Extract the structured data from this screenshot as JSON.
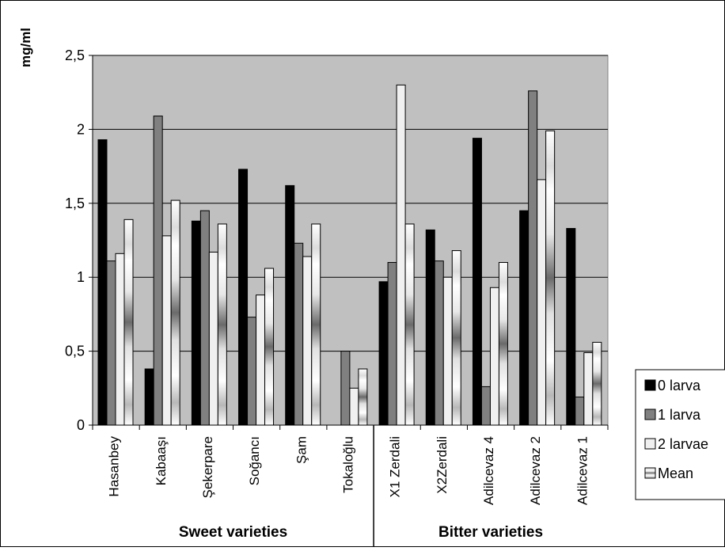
{
  "chart_data": {
    "type": "bar",
    "ylabel": "mg/ml",
    "ylim": [
      0,
      2.5
    ],
    "yticks": [
      0,
      0.5,
      1,
      1.5,
      2,
      2.5
    ],
    "ytick_labels": [
      "0",
      "0,5",
      "1",
      "1,5",
      "2",
      "2,5"
    ],
    "grid": true,
    "legend_position": "right-bottom",
    "categories": [
      "Hasanbey",
      "Kabaaşı",
      "Şekerpare",
      "Soğancı",
      "Şam",
      "Tokaloğlu",
      "X1 Zerdali",
      "X2Zerdali",
      "Adilcevaz 4",
      "Adilcevaz 2",
      "Adilcevaz 1"
    ],
    "groups": [
      {
        "label": "Sweet varieties",
        "categories": [
          "Hasanbey",
          "Kabaaşı",
          "Şekerpare",
          "Soğancı",
          "Şam",
          "Tokaloğlu"
        ]
      },
      {
        "label": "Bitter varieties",
        "categories": [
          "X1 Zerdali",
          "X2Zerdali",
          "Adilcevaz 4",
          "Adilcevaz 2",
          "Adilcevaz 1"
        ]
      }
    ],
    "series": [
      {
        "name": "0 larva",
        "values": [
          1.93,
          0.38,
          1.38,
          1.73,
          1.62,
          0.0,
          0.97,
          1.32,
          1.94,
          1.45,
          1.33
        ]
      },
      {
        "name": "1 larva",
        "values": [
          1.11,
          2.09,
          1.45,
          0.73,
          1.23,
          0.5,
          1.1,
          1.11,
          0.26,
          2.26,
          0.19
        ]
      },
      {
        "name": "2 larvae",
        "values": [
          1.16,
          1.28,
          1.17,
          0.88,
          1.14,
          0.25,
          2.3,
          1.0,
          0.93,
          1.66,
          0.49
        ]
      },
      {
        "name": "Mean",
        "values": [
          1.39,
          1.52,
          1.36,
          1.06,
          1.36,
          0.38,
          1.36,
          1.18,
          1.1,
          1.99,
          0.56
        ]
      }
    ],
    "colors": {
      "series0": "#000000",
      "series1": "#808080",
      "series2": "#f0f0f0",
      "plot_bg": "#c0c0c0",
      "grid": "#000000"
    }
  }
}
